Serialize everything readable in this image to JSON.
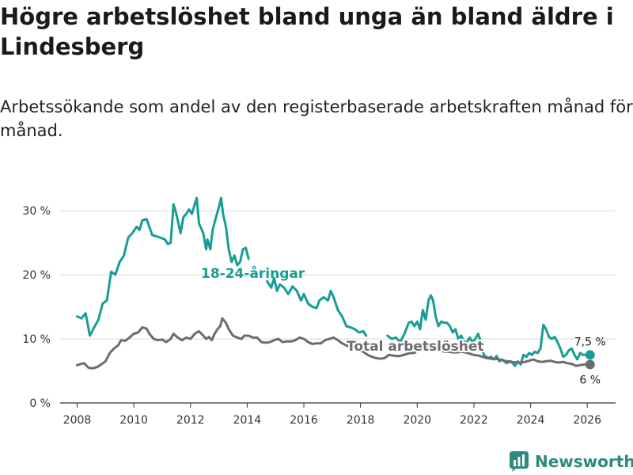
{
  "title": "Högre arbetslöshet bland unga än bland äldre i Lindesberg",
  "subtitle": "Arbetssökande som andel av den registerbaserade arbetskraften månad för månad.",
  "brand": {
    "name": "Newsworthy",
    "color": "#2e8b7a"
  },
  "chart_data": {
    "type": "line",
    "title": "Högre arbetslöshet bland unga än bland äldre i Lindesberg",
    "xlabel": "",
    "ylabel": "",
    "xlim": [
      2007.4,
      2027.0
    ],
    "ylim": [
      0,
      32
    ],
    "x_ticks": [
      2008,
      2010,
      2012,
      2014,
      2016,
      2018,
      2020,
      2022,
      2024,
      2026
    ],
    "x_tick_labels": [
      "2008",
      "2010",
      "2012",
      "2014",
      "2016",
      "2018",
      "2020",
      "2022",
      "2024",
      "2026"
    ],
    "y_ticks": [
      0,
      10,
      20,
      30
    ],
    "y_tick_labels": [
      "0 %",
      "10 %",
      "20 %",
      "30 %"
    ],
    "grid": "horizontal",
    "series": [
      {
        "name": "18-24-åringar",
        "label": "18-24-åringar",
        "color": "#179e94",
        "end_label": "7,5 %",
        "points": [
          [
            2008.0,
            13.5
          ],
          [
            2008.15,
            13.2
          ],
          [
            2008.3,
            14.0
          ],
          [
            2008.45,
            10.5
          ],
          [
            2008.6,
            11.8
          ],
          [
            2008.75,
            13.0
          ],
          [
            2008.9,
            15.5
          ],
          [
            2009.05,
            16.0
          ],
          [
            2009.2,
            20.5
          ],
          [
            2009.35,
            20.0
          ],
          [
            2009.5,
            22.0
          ],
          [
            2009.65,
            23.0
          ],
          [
            2009.8,
            25.8
          ],
          [
            2009.95,
            26.5
          ],
          [
            2010.1,
            27.5
          ],
          [
            2010.2,
            27.0
          ],
          [
            2010.3,
            28.5
          ],
          [
            2010.45,
            28.7
          ],
          [
            2010.55,
            27.5
          ],
          [
            2010.65,
            26.2
          ],
          [
            2010.8,
            26.0
          ],
          [
            2010.95,
            25.8
          ],
          [
            2011.1,
            25.5
          ],
          [
            2011.2,
            24.8
          ],
          [
            2011.3,
            25.0
          ],
          [
            2011.4,
            31.0
          ],
          [
            2011.5,
            29.5
          ],
          [
            2011.65,
            26.5
          ],
          [
            2011.75,
            29.0
          ],
          [
            2011.85,
            29.5
          ],
          [
            2011.95,
            30.2
          ],
          [
            2012.05,
            29.5
          ],
          [
            2012.15,
            31.0
          ],
          [
            2012.22,
            32.0
          ],
          [
            2012.3,
            28.0
          ],
          [
            2012.45,
            26.5
          ],
          [
            2012.55,
            24.0
          ],
          [
            2012.6,
            25.5
          ],
          [
            2012.7,
            24.0
          ],
          [
            2012.78,
            27.0
          ],
          [
            2012.9,
            29.0
          ],
          [
            2013.0,
            30.5
          ],
          [
            2013.08,
            32.0
          ],
          [
            2013.15,
            29.5
          ],
          [
            2013.25,
            27.5
          ],
          [
            2013.35,
            24.0
          ],
          [
            2013.45,
            22.0
          ],
          [
            2013.55,
            23.0
          ],
          [
            2013.65,
            21.5
          ],
          [
            2013.75,
            22.0
          ],
          [
            2013.85,
            24.0
          ],
          [
            2013.95,
            24.2
          ],
          [
            2014.05,
            22.5
          ]
        ],
        "points_b": [
          [
            2014.7,
            19.0
          ],
          [
            2014.85,
            18.0
          ],
          [
            2014.95,
            19.5
          ],
          [
            2015.05,
            17.5
          ],
          [
            2015.15,
            18.5
          ],
          [
            2015.3,
            18.0
          ],
          [
            2015.45,
            17.0
          ],
          [
            2015.6,
            18.2
          ],
          [
            2015.75,
            17.5
          ],
          [
            2015.9,
            16.0
          ],
          [
            2016.0,
            17.0
          ],
          [
            2016.15,
            15.5
          ],
          [
            2016.3,
            15.0
          ],
          [
            2016.45,
            14.8
          ],
          [
            2016.55,
            16.0
          ],
          [
            2016.7,
            16.5
          ],
          [
            2016.85,
            16.0
          ],
          [
            2016.95,
            17.5
          ],
          [
            2017.05,
            16.5
          ],
          [
            2017.2,
            14.5
          ],
          [
            2017.35,
            13.5
          ],
          [
            2017.5,
            12.0
          ],
          [
            2017.65,
            11.8
          ],
          [
            2017.8,
            11.5
          ],
          [
            2017.95,
            11.0
          ],
          [
            2018.1,
            11.2
          ],
          [
            2018.2,
            10.5
          ]
        ],
        "points_c": [
          [
            2018.95,
            10.5
          ],
          [
            2019.1,
            10.0
          ],
          [
            2019.25,
            10.2
          ],
          [
            2019.4,
            9.5
          ],
          [
            2019.55,
            10.8
          ],
          [
            2019.7,
            12.5
          ],
          [
            2019.8,
            12.7
          ],
          [
            2019.9,
            12.0
          ],
          [
            2020.0,
            12.7
          ],
          [
            2020.1,
            11.5
          ],
          [
            2020.2,
            14.5
          ],
          [
            2020.3,
            13.0
          ],
          [
            2020.4,
            16.0
          ],
          [
            2020.48,
            16.8
          ],
          [
            2020.56,
            16.0
          ],
          [
            2020.65,
            13.5
          ],
          [
            2020.75,
            12.0
          ],
          [
            2020.85,
            12.7
          ],
          [
            2020.95,
            12.5
          ],
          [
            2021.05,
            12.5
          ],
          [
            2021.15,
            12.0
          ],
          [
            2021.25,
            11.0
          ],
          [
            2021.35,
            11.5
          ],
          [
            2021.45,
            10.0
          ],
          [
            2021.55,
            10.5
          ],
          [
            2021.65,
            9.5
          ],
          [
            2021.75,
            9.5
          ],
          [
            2021.85,
            10.2
          ],
          [
            2021.95,
            9.5
          ],
          [
            2022.05,
            10.0
          ],
          [
            2022.15,
            10.8
          ],
          [
            2022.25,
            9.5
          ],
          [
            2022.35,
            7.5
          ],
          [
            2022.5,
            7.0
          ],
          [
            2022.6,
            7.2
          ],
          [
            2022.7,
            6.8
          ],
          [
            2022.8,
            7.3
          ],
          [
            2022.9,
            6.5
          ],
          [
            2023.0,
            6.8
          ],
          [
            2023.15,
            6.2
          ],
          [
            2023.3,
            6.5
          ],
          [
            2023.45,
            5.8
          ],
          [
            2023.55,
            6.5
          ],
          [
            2023.65,
            6.0
          ],
          [
            2023.75,
            7.5
          ],
          [
            2023.85,
            7.2
          ],
          [
            2023.95,
            7.8
          ],
          [
            2024.05,
            7.5
          ],
          [
            2024.15,
            8.0
          ],
          [
            2024.25,
            7.8
          ],
          [
            2024.35,
            8.5
          ],
          [
            2024.45,
            12.2
          ],
          [
            2024.55,
            11.5
          ],
          [
            2024.65,
            10.3
          ],
          [
            2024.75,
            10.0
          ],
          [
            2024.85,
            10.3
          ],
          [
            2024.95,
            9.5
          ],
          [
            2025.05,
            8.5
          ],
          [
            2025.15,
            7.2
          ],
          [
            2025.25,
            7.5
          ],
          [
            2025.35,
            8.2
          ],
          [
            2025.45,
            8.5
          ],
          [
            2025.55,
            7.5
          ],
          [
            2025.65,
            6.8
          ],
          [
            2025.75,
            7.8
          ],
          [
            2025.85,
            7.5
          ],
          [
            2025.95,
            7.5
          ],
          [
            2026.1,
            7.5
          ]
        ]
      },
      {
        "name": "Total arbetslöshet",
        "label": "Total arbetslöshet",
        "color": "#6e6b70",
        "end_label": "6 %",
        "points": [
          [
            2008.0,
            5.9
          ],
          [
            2008.15,
            6.1
          ],
          [
            2008.25,
            6.2
          ],
          [
            2008.4,
            5.5
          ],
          [
            2008.55,
            5.4
          ],
          [
            2008.7,
            5.6
          ],
          [
            2008.85,
            6.0
          ],
          [
            2009.0,
            6.5
          ],
          [
            2009.15,
            7.8
          ],
          [
            2009.3,
            8.5
          ],
          [
            2009.45,
            9.0
          ],
          [
            2009.55,
            9.8
          ],
          [
            2009.7,
            9.7
          ],
          [
            2009.85,
            10.2
          ],
          [
            2010.0,
            10.8
          ],
          [
            2010.15,
            11.0
          ],
          [
            2010.3,
            11.8
          ],
          [
            2010.45,
            11.6
          ],
          [
            2010.55,
            10.8
          ],
          [
            2010.7,
            10.0
          ],
          [
            2010.85,
            9.8
          ],
          [
            2011.0,
            9.9
          ],
          [
            2011.15,
            9.5
          ],
          [
            2011.3,
            10.0
          ],
          [
            2011.4,
            10.8
          ],
          [
            2011.55,
            10.2
          ],
          [
            2011.7,
            9.8
          ],
          [
            2011.85,
            10.2
          ],
          [
            2012.0,
            10.0
          ],
          [
            2012.15,
            10.8
          ],
          [
            2012.3,
            11.2
          ],
          [
            2012.45,
            10.5
          ],
          [
            2012.55,
            10.0
          ],
          [
            2012.65,
            10.3
          ],
          [
            2012.75,
            9.8
          ],
          [
            2012.85,
            10.8
          ],
          [
            2012.95,
            11.5
          ],
          [
            2013.05,
            12.0
          ],
          [
            2013.12,
            13.2
          ],
          [
            2013.25,
            12.5
          ],
          [
            2013.35,
            11.5
          ],
          [
            2013.5,
            10.5
          ],
          [
            2013.65,
            10.2
          ],
          [
            2013.8,
            10.0
          ],
          [
            2013.9,
            10.5
          ],
          [
            2014.05,
            10.5
          ],
          [
            2014.2,
            10.2
          ],
          [
            2014.35,
            10.2
          ],
          [
            2014.5,
            9.5
          ],
          [
            2014.65,
            9.4
          ],
          [
            2014.8,
            9.5
          ],
          [
            2014.95,
            9.8
          ],
          [
            2015.1,
            10.0
          ],
          [
            2015.25,
            9.5
          ],
          [
            2015.4,
            9.6
          ],
          [
            2015.55,
            9.6
          ],
          [
            2015.7,
            9.8
          ],
          [
            2015.85,
            10.2
          ],
          [
            2016.0,
            10.0
          ],
          [
            2016.15,
            9.5
          ],
          [
            2016.3,
            9.2
          ],
          [
            2016.45,
            9.3
          ],
          [
            2016.6,
            9.3
          ],
          [
            2016.75,
            9.8
          ],
          [
            2016.9,
            10.0
          ],
          [
            2017.05,
            10.2
          ],
          [
            2017.2,
            9.8
          ],
          [
            2017.35,
            9.3
          ],
          [
            2017.5,
            9.0
          ],
          [
            2017.65,
            8.7
          ],
          [
            2017.8,
            8.7
          ],
          [
            2017.95,
            8.2
          ],
          [
            2018.1,
            8.0
          ],
          [
            2018.25,
            7.5
          ],
          [
            2018.4,
            7.2
          ],
          [
            2018.55,
            7.0
          ],
          [
            2018.7,
            6.9
          ],
          [
            2018.85,
            7.0
          ],
          [
            2019.0,
            7.5
          ],
          [
            2019.15,
            7.4
          ],
          [
            2019.3,
            7.3
          ],
          [
            2019.45,
            7.4
          ],
          [
            2019.6,
            7.6
          ],
          [
            2019.75,
            7.8
          ],
          [
            2019.9,
            7.8
          ],
          [
            2020.05,
            8.5
          ],
          [
            2020.2,
            8.7
          ],
          [
            2020.35,
            8.8
          ],
          [
            2020.5,
            8.8
          ],
          [
            2020.65,
            8.5
          ],
          [
            2020.8,
            8.3
          ],
          [
            2020.95,
            8.0
          ],
          [
            2021.1,
            8.0
          ],
          [
            2021.25,
            7.9
          ],
          [
            2021.4,
            7.9
          ],
          [
            2021.55,
            8.0
          ],
          [
            2021.7,
            7.9
          ],
          [
            2021.85,
            7.7
          ],
          [
            2022.0,
            7.5
          ],
          [
            2022.15,
            7.4
          ],
          [
            2022.3,
            7.2
          ],
          [
            2022.45,
            7.0
          ],
          [
            2022.6,
            6.9
          ],
          [
            2022.75,
            6.9
          ],
          [
            2022.9,
            6.8
          ],
          [
            2023.05,
            6.6
          ],
          [
            2023.2,
            6.5
          ],
          [
            2023.35,
            6.4
          ],
          [
            2023.5,
            6.3
          ],
          [
            2023.65,
            6.3
          ],
          [
            2023.8,
            6.4
          ],
          [
            2023.95,
            6.6
          ],
          [
            2024.1,
            6.8
          ],
          [
            2024.25,
            6.5
          ],
          [
            2024.4,
            6.4
          ],
          [
            2024.55,
            6.5
          ],
          [
            2024.7,
            6.6
          ],
          [
            2024.85,
            6.4
          ],
          [
            2025.0,
            6.3
          ],
          [
            2025.15,
            6.4
          ],
          [
            2025.3,
            6.2
          ],
          [
            2025.45,
            6.1
          ],
          [
            2025.6,
            5.8
          ],
          [
            2025.75,
            5.9
          ],
          [
            2025.9,
            6.0
          ],
          [
            2026.1,
            6.0
          ]
        ]
      }
    ]
  }
}
